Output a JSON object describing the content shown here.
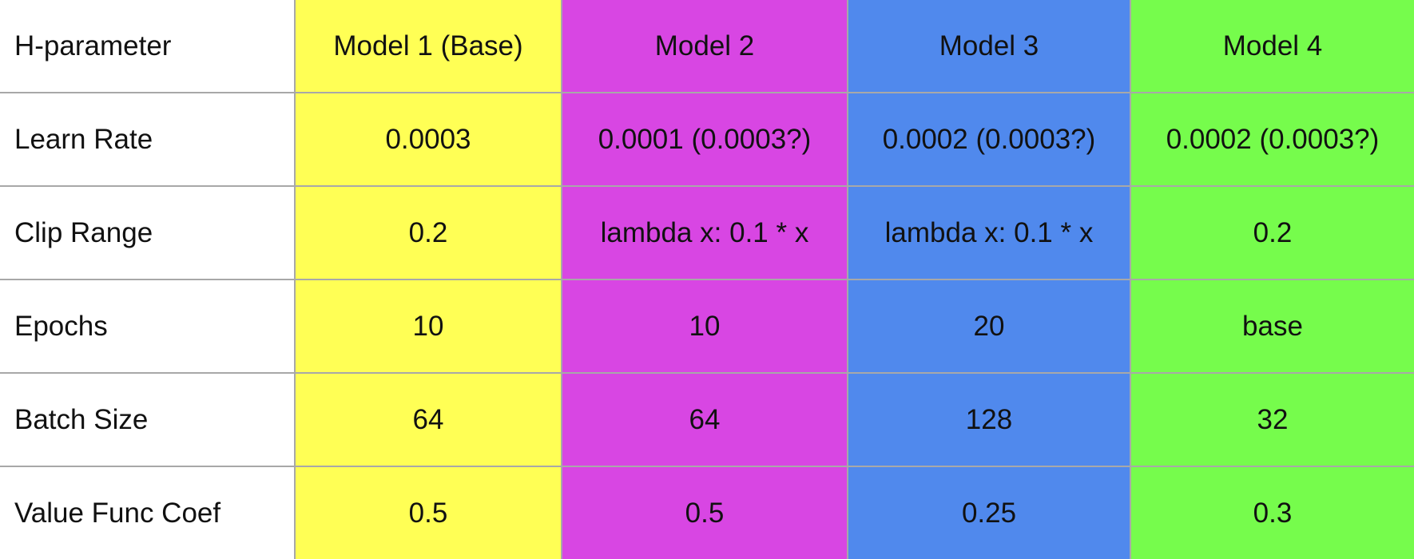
{
  "header": {
    "param_label": "H-parameter",
    "models": [
      "Model 1 (Base)",
      "Model 2",
      "Model 3",
      "Model 4"
    ]
  },
  "model_colors": [
    "#ffff55",
    "#d846e3",
    "#5089ed",
    "#76fc4c"
  ],
  "rows": [
    {
      "param": "Learn Rate",
      "values": [
        "0.0003",
        "0.0001 (0.0003?)",
        "0.0002 (0.0003?)",
        "0.0002 (0.0003?)"
      ]
    },
    {
      "param": "Clip Range",
      "values": [
        "0.2",
        "lambda x: 0.1 * x",
        "lambda x: 0.1 * x",
        "0.2"
      ]
    },
    {
      "param": "Epochs",
      "values": [
        "10",
        "10",
        "20",
        "base"
      ]
    },
    {
      "param": "Batch Size",
      "values": [
        "64",
        "64",
        "128",
        "32"
      ]
    },
    {
      "param": "Value Func Coef",
      "values": [
        "0.5",
        "0.5",
        "0.25",
        "0.3"
      ]
    }
  ]
}
